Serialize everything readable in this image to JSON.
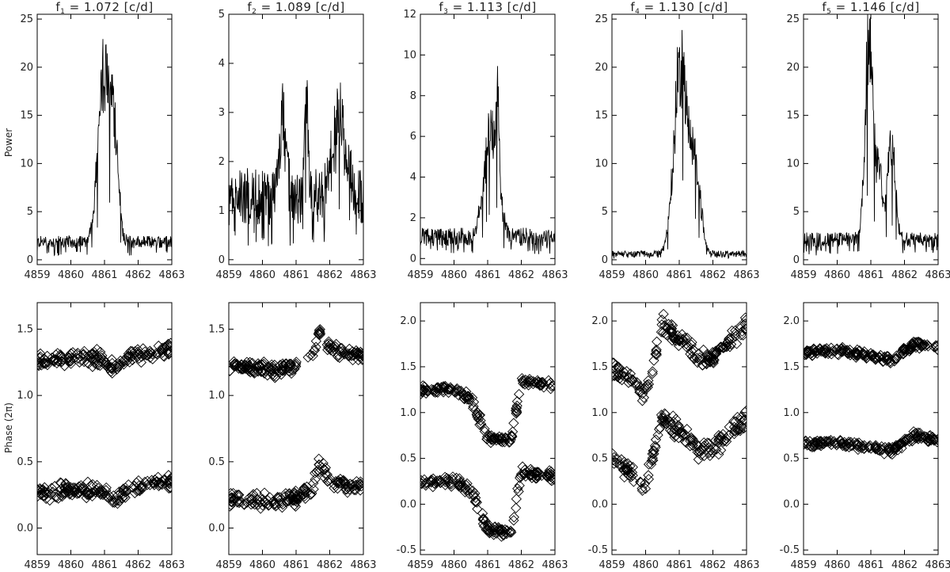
{
  "figure": {
    "ylabel_top": "Power",
    "ylabel_bottom": "Phase (2π)"
  },
  "chart_data": [
    {
      "type": "line",
      "panel": "power",
      "title": {
        "sym": "f",
        "sub": "1",
        "rest": " = 1.072 [c/d]"
      },
      "x_ticks": [
        "4859",
        "4860",
        "4861",
        "4862",
        "4863"
      ],
      "y_ticks": [
        "0",
        "5",
        "10",
        "15",
        "20",
        "25"
      ],
      "xlim": [
        4859,
        4863
      ],
      "ylim": [
        -0.5,
        25.5
      ],
      "profile": {
        "base": 1.2,
        "noise": 1.0,
        "peaks": [
          {
            "c": 4861.0,
            "a": 17.5,
            "w": 0.18
          },
          {
            "c": 4861.3,
            "a": 9,
            "w": 0.12
          }
        ]
      }
    },
    {
      "type": "line",
      "panel": "power",
      "title": {
        "sym": "f",
        "sub": "2",
        "rest": " = 1.089 [c/d]"
      },
      "x_ticks": [
        "4859",
        "4860",
        "4861",
        "4862",
        "4863"
      ],
      "y_ticks": [
        "0",
        "1",
        "2",
        "3",
        "4",
        "5"
      ],
      "xlim": [
        4859,
        4863
      ],
      "ylim": [
        -0.1,
        5.0
      ],
      "profile": {
        "base": 0.7,
        "noise": 0.9,
        "peaks": [
          {
            "c": 4861.3,
            "a": 2.2,
            "w": 0.05
          },
          {
            "c": 4860.6,
            "a": 1.5,
            "w": 0.1
          },
          {
            "c": 4862.3,
            "a": 1.5,
            "w": 0.2
          }
        ]
      }
    },
    {
      "type": "line",
      "panel": "power",
      "title": {
        "sym": "f",
        "sub": "3",
        "rest": " = 1.113 [c/d]"
      },
      "x_ticks": [
        "4859",
        "4860",
        "4861",
        "4862",
        "4863"
      ],
      "y_ticks": [
        "0",
        "2",
        "4",
        "6",
        "8",
        "10",
        "12"
      ],
      "xlim": [
        4859,
        4863
      ],
      "ylim": [
        -0.3,
        12.0
      ],
      "profile": {
        "base": 0.6,
        "noise": 0.7,
        "peaks": [
          {
            "c": 4861.1,
            "a": 5.3,
            "w": 0.2
          },
          {
            "c": 4861.3,
            "a": 4,
            "w": 0.05
          }
        ]
      }
    },
    {
      "type": "line",
      "panel": "power",
      "title": {
        "sym": "f",
        "sub": "4",
        "rest": " = 1.130 [c/d]"
      },
      "x_ticks": [
        "4859",
        "4860",
        "4861",
        "4862",
        "4863"
      ],
      "y_ticks": [
        "0",
        "5",
        "10",
        "15",
        "20",
        "25"
      ],
      "xlim": [
        4859,
        4863
      ],
      "ylim": [
        -0.5,
        25.5
      ],
      "profile": {
        "base": 0.3,
        "noise": 0.5,
        "peaks": [
          {
            "c": 4861.05,
            "a": 20,
            "w": 0.2
          },
          {
            "c": 4861.5,
            "a": 8,
            "w": 0.15
          }
        ]
      }
    },
    {
      "type": "line",
      "panel": "power",
      "title": {
        "sym": "f",
        "sub": "5",
        "rest": " = 1.146 [c/d]"
      },
      "x_ticks": [
        "4859",
        "4860",
        "4861",
        "4862",
        "4863"
      ],
      "y_ticks": [
        "0",
        "5",
        "10",
        "15",
        "20",
        "25"
      ],
      "xlim": [
        4859,
        4863
      ],
      "ylim": [
        -0.5,
        25.5
      ],
      "profile": {
        "base": 1.3,
        "noise": 1.2,
        "peaks": [
          {
            "c": 4860.95,
            "a": 21,
            "w": 0.12
          },
          {
            "c": 4861.6,
            "a": 10,
            "w": 0.12
          },
          {
            "c": 4861.25,
            "a": 7,
            "w": 0.08
          }
        ]
      }
    },
    {
      "type": "scatter",
      "panel": "phase",
      "x_ticks": [
        "4859",
        "4860",
        "4861",
        "4862",
        "4863"
      ],
      "y_ticks": [
        "0.0",
        "0.5",
        "1.0",
        "1.5"
      ],
      "xlim": [
        4859,
        4863
      ],
      "ylim": [
        -0.2,
        1.7
      ],
      "trend": [
        [
          4859,
          0.26
        ],
        [
          4860,
          0.28
        ],
        [
          4860.8,
          0.29
        ],
        [
          4861.3,
          0.2
        ],
        [
          4861.8,
          0.3
        ],
        [
          4863,
          0.35
        ]
      ],
      "offsets": [
        0,
        1
      ],
      "scatter": 0.08
    },
    {
      "type": "scatter",
      "panel": "phase",
      "x_ticks": [
        "4859",
        "4860",
        "4861",
        "4862",
        "4863"
      ],
      "y_ticks": [
        "0.0",
        "0.5",
        "1.0",
        "1.5"
      ],
      "xlim": [
        4859,
        4863
      ],
      "ylim": [
        -0.2,
        1.7
      ],
      "trend": [
        [
          4859,
          0.22
        ],
        [
          4860,
          0.2
        ],
        [
          4861,
          0.22
        ],
        [
          4861.5,
          0.3
        ],
        [
          4861.7,
          0.5
        ],
        [
          4862,
          0.35
        ],
        [
          4863,
          0.3
        ]
      ],
      "offsets": [
        0,
        1
      ],
      "scatter": 0.08
    },
    {
      "type": "scatter",
      "panel": "phase",
      "x_ticks": [
        "4859",
        "4860",
        "4861",
        "4862",
        "4863"
      ],
      "y_ticks": [
        "-0.5",
        "0.0",
        "0.5",
        "1.0",
        "1.5",
        "2.0"
      ],
      "xlim": [
        4859,
        4863
      ],
      "ylim": [
        -0.55,
        2.2
      ],
      "trend": [
        [
          4859,
          0.25
        ],
        [
          4860,
          0.25
        ],
        [
          4860.5,
          0.15
        ],
        [
          4861.0,
          -0.28
        ],
        [
          4861.7,
          -0.3
        ],
        [
          4862.0,
          0.35
        ],
        [
          4863,
          0.3
        ]
      ],
      "offsets": [
        0,
        1
      ],
      "scatter": 0.08
    },
    {
      "type": "scatter",
      "panel": "phase",
      "x_ticks": [
        "4859",
        "4860",
        "4861",
        "4862",
        "4863"
      ],
      "y_ticks": [
        "-0.5",
        "0.0",
        "0.5",
        "1.0",
        "1.5",
        "2.0"
      ],
      "xlim": [
        4859,
        4863
      ],
      "ylim": [
        -0.55,
        2.2
      ],
      "trend": [
        [
          4859,
          0.5
        ],
        [
          4860,
          0.2
        ],
        [
          4860.5,
          0.95
        ],
        [
          4861.0,
          0.8
        ],
        [
          4861.6,
          0.6
        ],
        [
          4862.0,
          0.6
        ],
        [
          4863,
          0.95
        ]
      ],
      "offsets": [
        0,
        1
      ],
      "scatter": 0.15
    },
    {
      "type": "scatter",
      "panel": "phase",
      "x_ticks": [
        "4859",
        "4860",
        "4861",
        "4862",
        "4863"
      ],
      "y_ticks": [
        "-0.5",
        "0.0",
        "0.5",
        "1.0",
        "1.5",
        "2.0"
      ],
      "xlim": [
        4859,
        4863
      ],
      "ylim": [
        -0.55,
        2.2
      ],
      "trend": [
        [
          4859,
          0.65
        ],
        [
          4860,
          0.68
        ],
        [
          4861,
          0.62
        ],
        [
          4861.6,
          0.58
        ],
        [
          4862.3,
          0.75
        ],
        [
          4863,
          0.7
        ]
      ],
      "offsets": [
        0,
        1
      ],
      "scatter": 0.06
    }
  ]
}
